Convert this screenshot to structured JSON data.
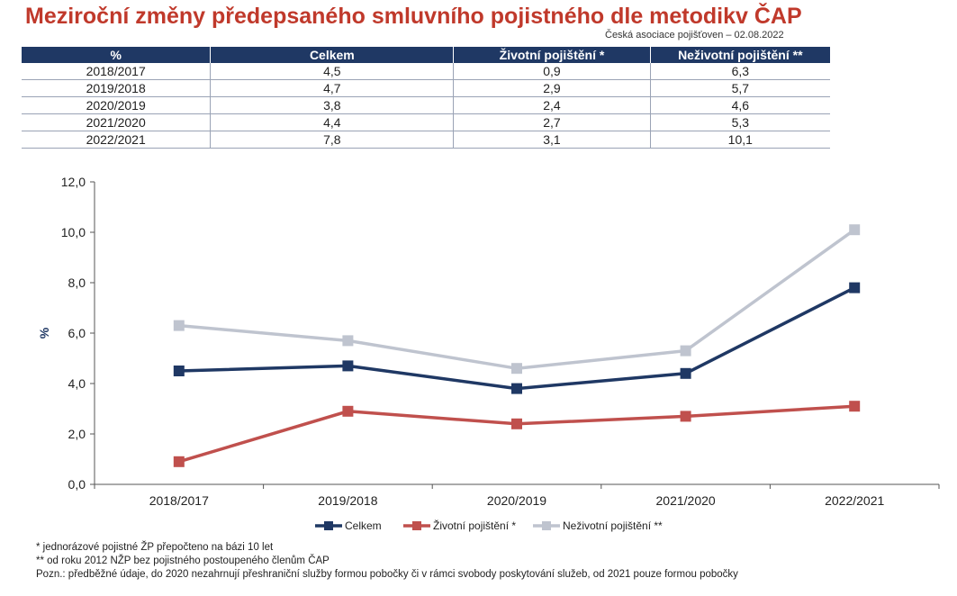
{
  "title": "Meziroční změny předepsaného smluvního pojistného dle metodikv ČAP",
  "source": "Česká asociace pojišťoven – 02.08.2022",
  "table": {
    "headers": [
      "%",
      "Celkem",
      "Životní pojištění *",
      "Neživotní pojištění **"
    ],
    "rows": [
      [
        "2018/2017",
        "4,5",
        "0,9",
        "6,3"
      ],
      [
        "2019/2018",
        "4,7",
        "2,9",
        "5,7"
      ],
      [
        "2020/2019",
        "3,8",
        "2,4",
        "4,6"
      ],
      [
        "2021/2020",
        "4,4",
        "2,7",
        "5,3"
      ],
      [
        "2022/2021",
        "7,8",
        "3,1",
        "10,1"
      ]
    ]
  },
  "chart_data": {
    "type": "line",
    "categories": [
      "2018/2017",
      "2019/2018",
      "2020/2019",
      "2021/2020",
      "2022/2021"
    ],
    "series": [
      {
        "name": "Celkem",
        "values": [
          4.5,
          4.7,
          3.8,
          4.4,
          7.8
        ],
        "color": "#1f3864"
      },
      {
        "name": "Životní pojištění *",
        "values": [
          0.9,
          2.9,
          2.4,
          2.7,
          3.1
        ],
        "color": "#c0504d"
      },
      {
        "name": "Neživotní pojištění **",
        "values": [
          6.3,
          5.7,
          4.6,
          5.3,
          10.1
        ],
        "color": "#bfc4cf"
      }
    ],
    "ylabel": "%",
    "ylim": [
      0,
      12
    ],
    "yticks": [
      "0,0",
      "2,0",
      "4,0",
      "6,0",
      "8,0",
      "10,0",
      "12,0"
    ],
    "ytick_values": [
      0,
      2,
      4,
      6,
      8,
      10,
      12
    ],
    "legend_position": "bottom",
    "grid": false
  },
  "notes": [
    "* jednorázové pojistné ŽP přepočteno na bázi 10 let",
    "** od roku 2012 NŽP bez pojistného postoupeného členům ČAP",
    "Pozn.: předběžné údaje, do 2020 nezahrnují přeshraniční služby formou pobočky či v rámci svobody poskytování služeb, od 2021 pouze formou pobočky"
  ]
}
